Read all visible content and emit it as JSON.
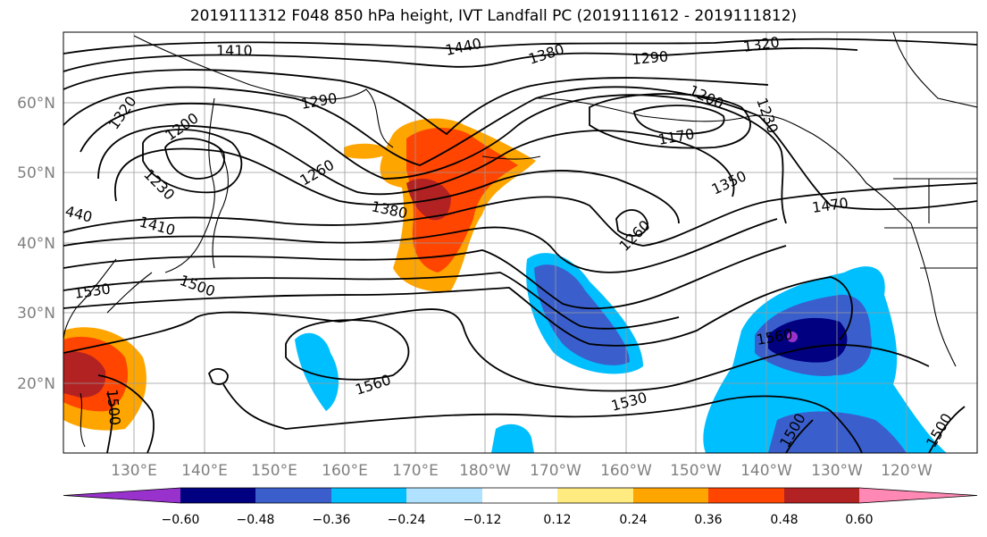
{
  "title": "2019111312 F048 850 hPa height, IVT Landfall PC (2019111612 - 2019111812)",
  "map": {
    "lon_labels": [
      "130°E",
      "140°E",
      "150°E",
      "160°E",
      "170°E",
      "180°W",
      "170°W",
      "160°W",
      "150°W",
      "140°W",
      "130°W",
      "120°W"
    ],
    "lat_labels": [
      "60°N",
      "50°N",
      "40°N",
      "30°N",
      "20°N"
    ],
    "contour_labels": [
      "1410",
      "1440",
      "1380",
      "1290",
      "1320",
      "1320",
      "1290",
      "1200",
      "1200",
      "1170",
      "1230",
      "1260",
      "1380",
      "1350",
      "1470",
      "1410",
      "440",
      "1230",
      "1260",
      "1530",
      "1500",
      "1560",
      "1560",
      "1530",
      "1500",
      "1500",
      "1500"
    ]
  },
  "colorbar": {
    "ticks": [
      "−0.60",
      "−0.48",
      "−0.36",
      "−0.24",
      "−0.12",
      "0.12",
      "0.24",
      "0.36",
      "0.48",
      "0.60"
    ],
    "colors": [
      "#9932cc",
      "#000080",
      "#3a5fcd",
      "#00bfff",
      "#b0e2ff",
      "#ffffff",
      "#ffeb80",
      "#ffa500",
      "#ff4500",
      "#b22222",
      "#ff88b4"
    ]
  }
}
